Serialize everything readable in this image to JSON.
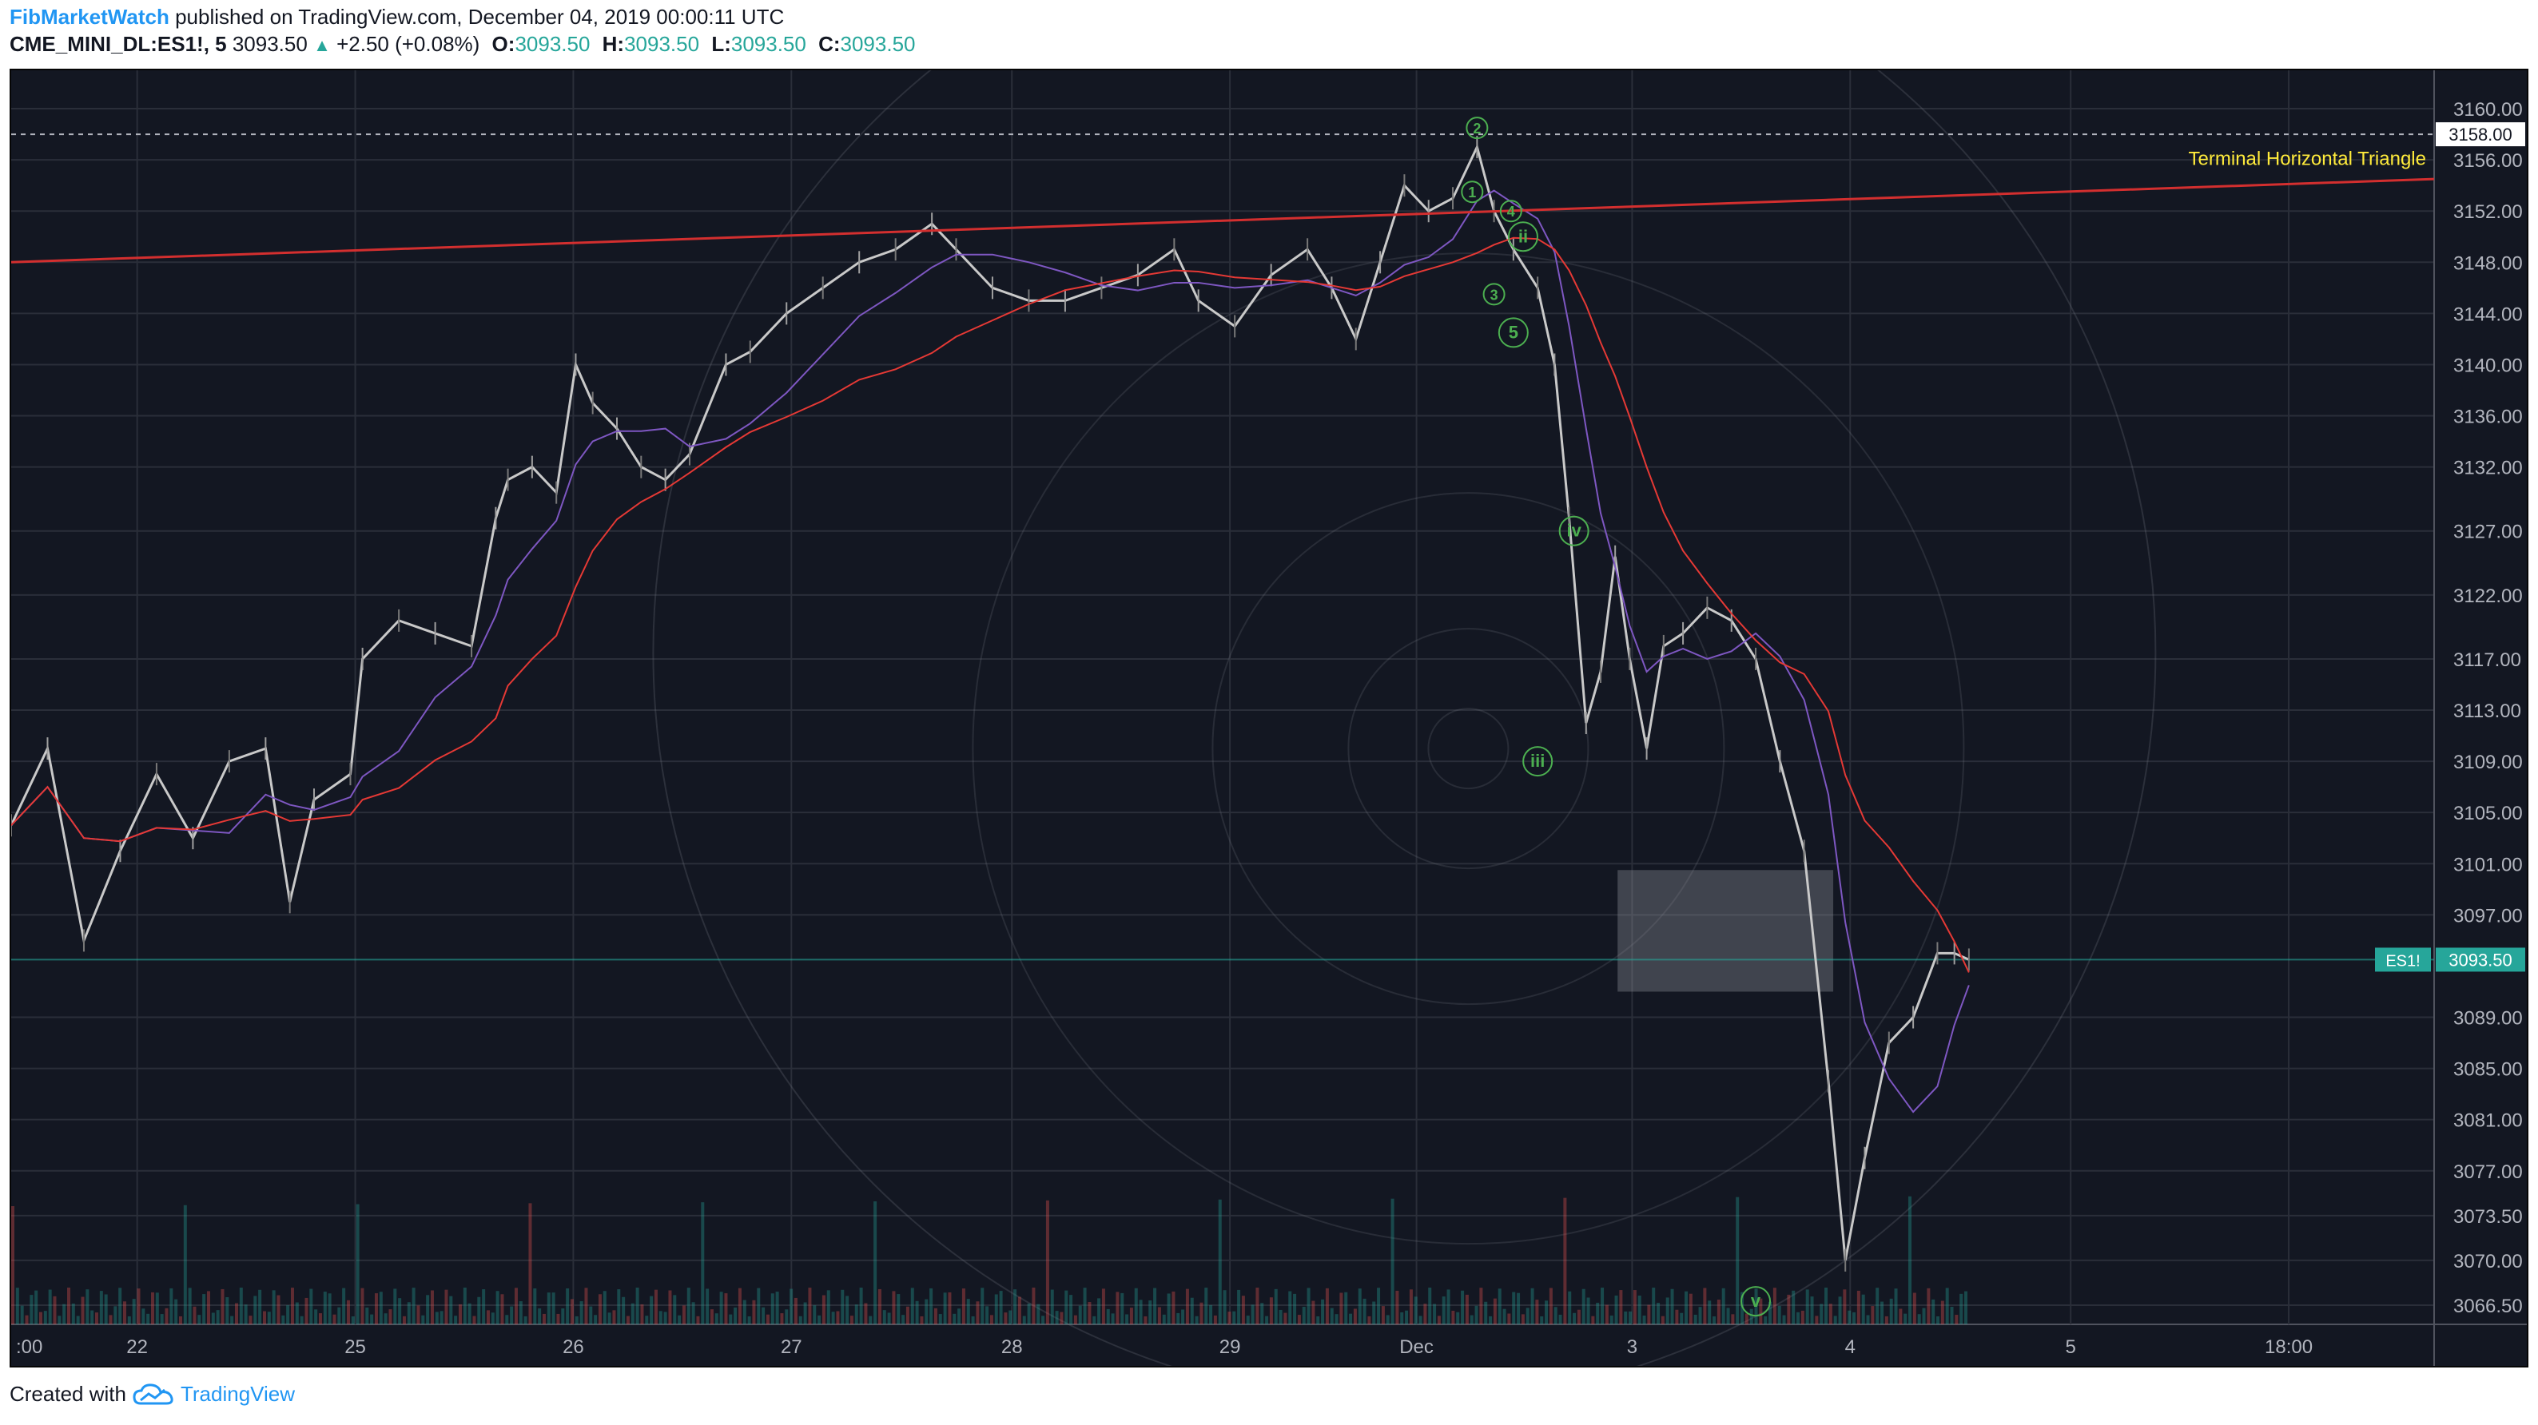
{
  "header": {
    "author": "FibMarketWatch",
    "published_text": "published on TradingView.com, December 04, 2019 00:00:11 UTC",
    "symbol": "CME_MINI_DL:ES1!, 5",
    "last_price": "3093.50",
    "change": "+2.50 (+0.08%)",
    "ohlc": [
      {
        "label": "O:",
        "value": "3093.50"
      },
      {
        "label": "H:",
        "value": "3093.50"
      },
      {
        "label": "L:",
        "value": "3093.50"
      },
      {
        "label": "C:",
        "value": "3093.50"
      }
    ]
  },
  "footer": {
    "created_with": "Created with",
    "brand": "TradingView"
  },
  "colors": {
    "background": "#131722",
    "grid": "#2a2e39",
    "up_candle": "#c9c9c9",
    "red_line": "#d32f2f",
    "ma_red": "#e53935",
    "wave_labels": "#4caf50",
    "price_tag": "#26a69a",
    "annotation_yellow": "#ffeb3b"
  },
  "chart_data": {
    "type": "candlestick",
    "symbol": "ES1!",
    "interval": "5",
    "y_ticks": [
      "3160.00",
      "3156.00",
      "3152.00",
      "3148.00",
      "3144.00",
      "3140.00",
      "3136.00",
      "3132.00",
      "3127.00",
      "3122.00",
      "3117.00",
      "3113.00",
      "3109.00",
      "3105.00",
      "3101.00",
      "3097.00",
      "3089.00",
      "3085.00",
      "3081.00",
      "3077.00",
      "3073.50",
      "3070.00",
      "3066.50"
    ],
    "ylim": [
      3065,
      3163
    ],
    "x_ticks": [
      ":00",
      "22",
      "25",
      "26",
      "27",
      "28",
      "29",
      "Dec",
      "3",
      "4",
      "5",
      "18:00"
    ],
    "current_price_label": "ES1!",
    "current_price": "3093.50",
    "horizontal_level": "3158.00",
    "annotation": "Terminal Horizontal Triangle",
    "trendline": {
      "start": 3148.0,
      "end": 3154.5
    },
    "price_path": [
      [
        0,
        3104
      ],
      [
        0.015,
        3110
      ],
      [
        0.03,
        3095
      ],
      [
        0.045,
        3102
      ],
      [
        0.06,
        3108
      ],
      [
        0.075,
        3103
      ],
      [
        0.09,
        3109
      ],
      [
        0.105,
        3110
      ],
      [
        0.115,
        3098
      ],
      [
        0.125,
        3106
      ],
      [
        0.14,
        3108
      ],
      [
        0.145,
        3117
      ],
      [
        0.16,
        3120
      ],
      [
        0.175,
        3119
      ],
      [
        0.19,
        3118
      ],
      [
        0.2,
        3128
      ],
      [
        0.205,
        3131
      ],
      [
        0.215,
        3132
      ],
      [
        0.225,
        3130
      ],
      [
        0.233,
        3140
      ],
      [
        0.24,
        3137
      ],
      [
        0.25,
        3135
      ],
      [
        0.26,
        3132
      ],
      [
        0.27,
        3131
      ],
      [
        0.28,
        3133
      ],
      [
        0.295,
        3140
      ],
      [
        0.305,
        3141
      ],
      [
        0.32,
        3144
      ],
      [
        0.335,
        3146
      ],
      [
        0.35,
        3148
      ],
      [
        0.365,
        3149
      ],
      [
        0.38,
        3151
      ],
      [
        0.39,
        3149
      ],
      [
        0.405,
        3146
      ],
      [
        0.42,
        3145
      ],
      [
        0.435,
        3145
      ],
      [
        0.45,
        3146
      ],
      [
        0.465,
        3147
      ],
      [
        0.48,
        3149
      ],
      [
        0.49,
        3145
      ],
      [
        0.505,
        3143
      ],
      [
        0.52,
        3147
      ],
      [
        0.535,
        3149
      ],
      [
        0.545,
        3146
      ],
      [
        0.555,
        3142
      ],
      [
        0.565,
        3148
      ],
      [
        0.575,
        3154
      ],
      [
        0.585,
        3152
      ],
      [
        0.595,
        3153
      ],
      [
        0.605,
        3157
      ],
      [
        0.612,
        3152
      ],
      [
        0.62,
        3149
      ],
      [
        0.63,
        3146
      ],
      [
        0.637,
        3140
      ],
      [
        0.643,
        3128
      ],
      [
        0.65,
        3112
      ],
      [
        0.656,
        3116
      ],
      [
        0.662,
        3125
      ],
      [
        0.668,
        3117
      ],
      [
        0.675,
        3110
      ],
      [
        0.682,
        3118
      ],
      [
        0.69,
        3119
      ],
      [
        0.7,
        3121
      ],
      [
        0.71,
        3120
      ],
      [
        0.72,
        3117
      ],
      [
        0.73,
        3109
      ],
      [
        0.74,
        3102
      ],
      [
        0.75,
        3084
      ],
      [
        0.757,
        3070
      ],
      [
        0.765,
        3078
      ],
      [
        0.775,
        3087
      ],
      [
        0.785,
        3089
      ],
      [
        0.795,
        3094
      ],
      [
        0.802,
        3094
      ],
      [
        0.808,
        3093.5
      ]
    ],
    "wave_labels": [
      {
        "text": "2",
        "x": 0.605,
        "price": 3158.5,
        "shape": "circle-small"
      },
      {
        "text": "1",
        "x": 0.603,
        "price": 3153.5,
        "shape": "circle-small"
      },
      {
        "text": "4",
        "x": 0.619,
        "price": 3152.0,
        "shape": "circle-small"
      },
      {
        "text": "ii",
        "x": 0.624,
        "price": 3150.0,
        "shape": "circle"
      },
      {
        "text": "3",
        "x": 0.612,
        "price": 3145.5,
        "shape": "circle-small"
      },
      {
        "text": "5",
        "x": 0.62,
        "price": 3142.5,
        "shape": "circle"
      },
      {
        "text": "iv",
        "x": 0.645,
        "price": 3127.0,
        "shape": "circle"
      },
      {
        "text": "iii",
        "x": 0.63,
        "price": 3109.0,
        "shape": "circle"
      },
      {
        "text": "v",
        "x": 0.72,
        "price": 3066.8,
        "shape": "circle"
      }
    ]
  }
}
